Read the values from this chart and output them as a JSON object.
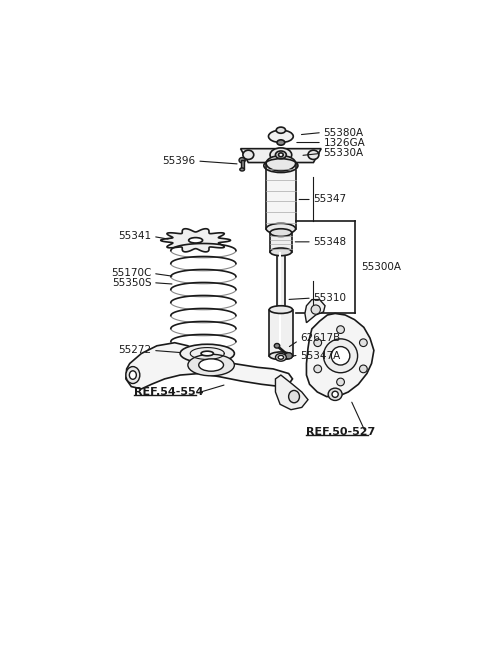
{
  "bg_color": "#ffffff",
  "line_color": "#1a1a1a",
  "label_color": "#1a1a1a",
  "fig_width": 4.8,
  "fig_height": 6.55,
  "dpi": 100,
  "xlim": [
    0,
    480
  ],
  "ylim": [
    0,
    655
  ]
}
